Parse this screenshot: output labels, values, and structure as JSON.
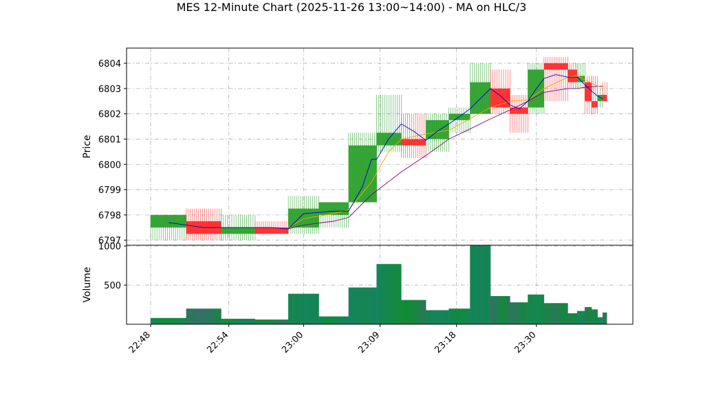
{
  "chart_data": {
    "type": "candlestick",
    "title": "MES 12-Minute Chart (2025-11-26 13:00~14:00) - MA on HLC/3",
    "price_panel": {
      "ylabel": "Price",
      "ylim": [
        6796.8,
        6804.6
      ],
      "yticks": [
        6797,
        6798,
        6799,
        6800,
        6801,
        6802,
        6803,
        6804
      ],
      "grid": true
    },
    "volume_panel": {
      "ylabel": "Volume",
      "ylim": [
        0,
        1010
      ],
      "yticks": [
        500,
        1000
      ],
      "grid": true
    },
    "x_tick_labels": [
      {
        "time": "22:48",
        "at": 0
      },
      {
        "time": "22:54",
        "at": 9.2
      },
      {
        "time": "23:00",
        "at": 18
      },
      {
        "time": "23:09",
        "at": 27
      },
      {
        "time": "23:18",
        "at": 36
      },
      {
        "time": "23:30",
        "at": 45.4
      }
    ],
    "colors": {
      "up": "#2ca02c",
      "down": "#ff2b2b",
      "ma_fast": "#0000cc",
      "ma_mid": "#ffa500",
      "ma_slow": "#800080",
      "grid": "#b0b0b0",
      "volume_edge_up": "#1f77b4",
      "volume_edge_down": "#8a2be2"
    },
    "bars": [
      {
        "start": 0,
        "end": 4.2,
        "open": 6797.5,
        "high": 6798.0,
        "low": 6797.0,
        "close": 6798.0,
        "volume": 80
      },
      {
        "start": 4.2,
        "end": 8.3,
        "open": 6797.75,
        "high": 6798.25,
        "low": 6797.0,
        "close": 6797.25,
        "volume": 200
      },
      {
        "start": 8.3,
        "end": 12.3,
        "open": 6797.25,
        "high": 6798.0,
        "low": 6797.0,
        "close": 6797.5,
        "volume": 70
      },
      {
        "start": 12.3,
        "end": 16.2,
        "open": 6797.5,
        "high": 6797.75,
        "low": 6797.25,
        "close": 6797.25,
        "volume": 60
      },
      {
        "start": 16.2,
        "end": 19.8,
        "open": 6797.5,
        "high": 6798.75,
        "low": 6797.25,
        "close": 6798.25,
        "volume": 390
      },
      {
        "start": 19.8,
        "end": 23.3,
        "open": 6798.0,
        "high": 6798.5,
        "low": 6797.5,
        "close": 6798.5,
        "volume": 100
      },
      {
        "start": 23.3,
        "end": 26.6,
        "open": 6798.5,
        "high": 6801.25,
        "low": 6798.5,
        "close": 6800.75,
        "volume": 470
      },
      {
        "start": 26.6,
        "end": 29.5,
        "open": 6800.75,
        "high": 6802.75,
        "low": 6800.5,
        "close": 6801.25,
        "volume": 770
      },
      {
        "start": 29.5,
        "end": 32.4,
        "open": 6801.0,
        "high": 6802.0,
        "low": 6800.25,
        "close": 6800.75,
        "volume": 310
      },
      {
        "start": 32.4,
        "end": 35.1,
        "open": 6801.0,
        "high": 6802.0,
        "low": 6800.5,
        "close": 6801.75,
        "volume": 180
      },
      {
        "start": 35.1,
        "end": 37.6,
        "open": 6801.75,
        "high": 6802.25,
        "low": 6801.25,
        "close": 6802.0,
        "volume": 200
      },
      {
        "start": 37.6,
        "end": 40.0,
        "open": 6802.0,
        "high": 6804.0,
        "low": 6802.0,
        "close": 6803.25,
        "volume": 1010
      },
      {
        "start": 40.0,
        "end": 42.3,
        "open": 6803.0,
        "high": 6803.75,
        "low": 6802.0,
        "close": 6802.25,
        "volume": 360
      },
      {
        "start": 42.3,
        "end": 44.4,
        "open": 6802.25,
        "high": 6802.75,
        "low": 6801.25,
        "close": 6802.0,
        "volume": 280
      },
      {
        "start": 44.4,
        "end": 46.3,
        "open": 6802.25,
        "high": 6804.0,
        "low": 6802.0,
        "close": 6803.75,
        "volume": 380
      },
      {
        "start": 46.3,
        "end": 49.1,
        "open": 6804.0,
        "high": 6804.25,
        "low": 6802.5,
        "close": 6803.75,
        "volume": 270
      },
      {
        "start": 49.1,
        "end": 50.2,
        "open": 6803.75,
        "high": 6804.0,
        "low": 6803.0,
        "close": 6803.25,
        "volume": 140
      },
      {
        "start": 50.2,
        "end": 51.1,
        "open": 6803.25,
        "high": 6804.0,
        "low": 6803.0,
        "close": 6803.5,
        "volume": 170
      },
      {
        "start": 51.1,
        "end": 51.9,
        "open": 6803.25,
        "high": 6803.5,
        "low": 6802.0,
        "close": 6802.5,
        "volume": 220
      },
      {
        "start": 51.9,
        "end": 52.6,
        "open": 6802.5,
        "high": 6803.5,
        "low": 6802.0,
        "close": 6802.25,
        "volume": 190
      },
      {
        "start": 52.6,
        "end": 53.2,
        "open": 6802.5,
        "high": 6803.0,
        "low": 6802.25,
        "close": 6802.75,
        "volume": 90
      },
      {
        "start": 53.2,
        "end": 53.7,
        "open": 6802.75,
        "high": 6803.25,
        "low": 6802.5,
        "close": 6802.5,
        "volume": 150
      }
    ],
    "ma_fast": [
      [
        2.1,
        6797.7
      ],
      [
        6.2,
        6797.5
      ],
      [
        10.3,
        6797.5
      ],
      [
        14.2,
        6797.5
      ],
      [
        16.2,
        6797.45
      ],
      [
        18,
        6798.05
      ],
      [
        21.5,
        6798.15
      ],
      [
        23.3,
        6798.15
      ],
      [
        24.9,
        6799.1
      ],
      [
        26,
        6800.2
      ],
      [
        26.6,
        6800.2
      ],
      [
        28,
        6801.0
      ],
      [
        29.5,
        6801.6
      ],
      [
        31,
        6801.3
      ],
      [
        32.4,
        6800.95
      ],
      [
        33.7,
        6801.3
      ],
      [
        35.1,
        6801.6
      ],
      [
        36.4,
        6801.9
      ],
      [
        37.6,
        6802.2
      ],
      [
        38.8,
        6802.6
      ],
      [
        40,
        6803.0
      ],
      [
        41.2,
        6802.7
      ],
      [
        42.3,
        6802.35
      ],
      [
        43.4,
        6802.2
      ],
      [
        44.4,
        6802.5
      ],
      [
        45.4,
        6803.0
      ],
      [
        46.3,
        6803.4
      ],
      [
        47.7,
        6803.55
      ],
      [
        49.1,
        6803.45
      ],
      [
        50.2,
        6803.45
      ],
      [
        51.1,
        6803.15
      ],
      [
        51.9,
        6802.9
      ],
      [
        52.6,
        6802.7
      ],
      [
        53.2,
        6802.6
      ]
    ],
    "ma_mid": [
      [
        16.2,
        6797.5
      ],
      [
        18,
        6797.85
      ],
      [
        21.5,
        6798.05
      ],
      [
        23.3,
        6798.2
      ],
      [
        26,
        6799.3
      ],
      [
        28,
        6800.5
      ],
      [
        29.5,
        6801.0
      ],
      [
        32.4,
        6801.2
      ],
      [
        35.1,
        6801.35
      ],
      [
        37.6,
        6801.8
      ],
      [
        40,
        6802.25
      ],
      [
        42.3,
        6802.5
      ],
      [
        44.4,
        6802.55
      ],
      [
        46.3,
        6803.0
      ],
      [
        49.1,
        6803.45
      ],
      [
        50.2,
        6803.5
      ],
      [
        51.1,
        6803.35
      ],
      [
        52.6,
        6803.1
      ],
      [
        53.2,
        6803.05
      ]
    ],
    "ma_slow": [
      [
        16.2,
        6797.45
      ],
      [
        18,
        6797.6
      ],
      [
        21.5,
        6797.75
      ],
      [
        23.3,
        6797.9
      ],
      [
        26,
        6798.8
      ],
      [
        29.5,
        6799.7
      ],
      [
        32.4,
        6800.35
      ],
      [
        35.1,
        6801.0
      ],
      [
        37.6,
        6801.4
      ],
      [
        40,
        6801.8
      ],
      [
        42.3,
        6802.15
      ],
      [
        44.4,
        6802.5
      ],
      [
        46.3,
        6802.85
      ],
      [
        49.1,
        6803.0
      ],
      [
        50.2,
        6803.0
      ],
      [
        51.1,
        6803.05
      ],
      [
        53.2,
        6803.1
      ]
    ]
  }
}
